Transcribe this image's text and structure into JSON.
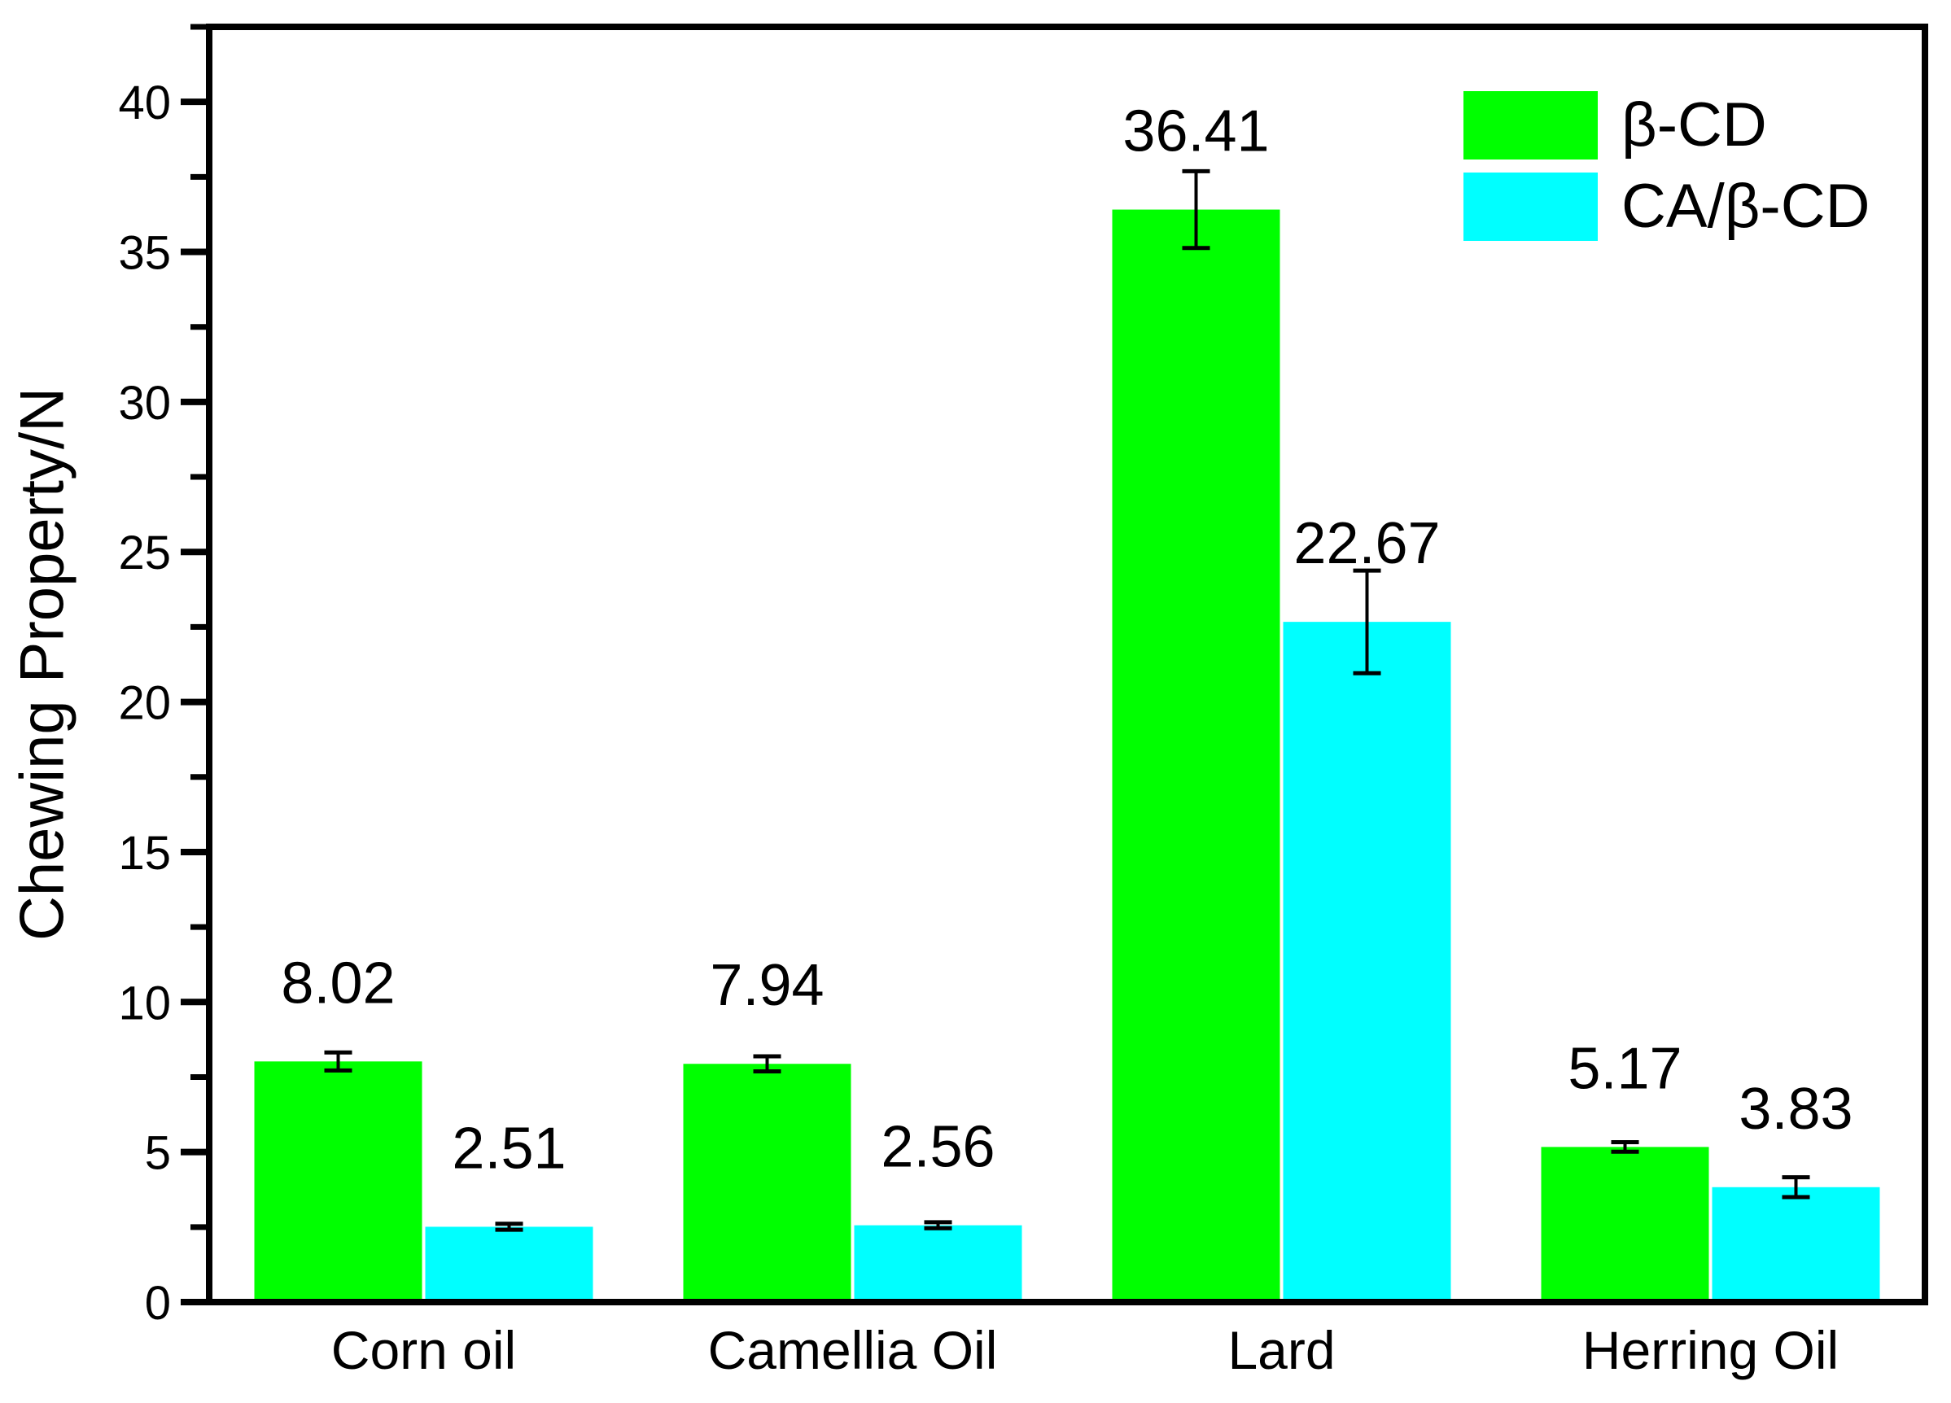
{
  "figure": {
    "background_color": "#FFFFFF",
    "frame_color": "#000000",
    "y_axis_title": "Chewing Property/N",
    "legend": {
      "items": [
        {
          "label": "β-CD",
          "color": "#00FF00"
        },
        {
          "label": "CA/β-CD",
          "color": "#00FFFF"
        }
      ]
    }
  },
  "chart_data": {
    "type": "bar",
    "title": "",
    "xlabel": "",
    "ylabel": "Chewing Property/N",
    "ylim": [
      0,
      42.5
    ],
    "yticks": [
      0,
      5,
      10,
      15,
      20,
      25,
      30,
      35,
      40
    ],
    "ytick_labels": [
      "0",
      "5",
      "10",
      "15",
      "20",
      "25",
      "30",
      "35",
      "40"
    ],
    "minor_tick_step": 2.5,
    "grid": false,
    "legend_position": "top-right",
    "categories": [
      "Corn oil",
      "Camellia Oil",
      "Lard",
      "Herring Oil"
    ],
    "series": [
      {
        "name": "β-CD",
        "color": "#00FF00",
        "values": [
          8.02,
          7.94,
          36.41,
          5.17
        ],
        "errors": [
          0.3,
          0.25,
          1.28,
          0.16
        ],
        "value_labels": [
          "8.02",
          "7.94",
          "36.41",
          "5.17"
        ]
      },
      {
        "name": "CA/β-CD",
        "color": "#00FFFF",
        "values": [
          2.51,
          2.56,
          22.67,
          3.83
        ],
        "errors": [
          0.1,
          0.1,
          1.71,
          0.33
        ],
        "value_labels": [
          "2.51",
          "2.56",
          "22.67",
          "3.83"
        ]
      }
    ]
  }
}
